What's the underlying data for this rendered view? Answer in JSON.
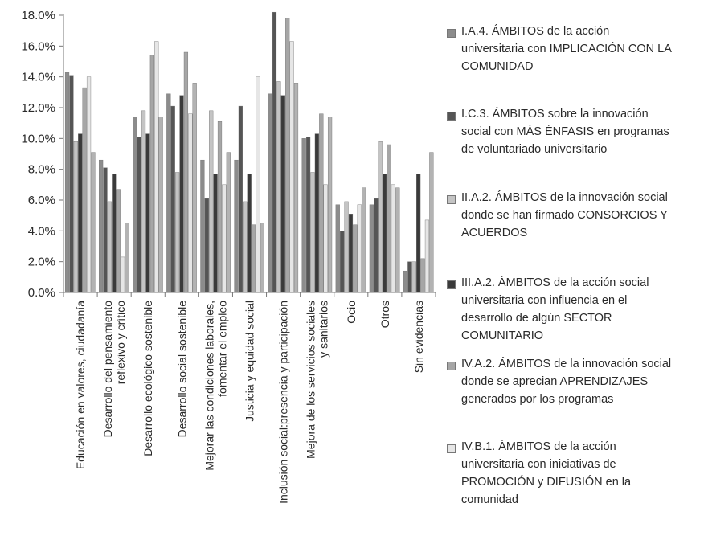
{
  "chart_data": {
    "type": "bar",
    "categories": [
      "Educación en valores, ciudadanía",
      "Desarrollo del pensamiento reflexivo y crítico",
      "Desarrollo ecológico sostenible",
      "Desarrollo social sostenible",
      "Mejorar las condiciones laborales, fomentar el empleo",
      "Justicia y equidad social",
      "Inclusión social:presencia y participación",
      "Mejora de los servicios sociales y sanitarios",
      "Ocio",
      "Otros",
      "Sin evidencias"
    ],
    "category_lines": [
      [
        "Educación en valores, ciudadanía"
      ],
      [
        "Desarrollo del pensamiento",
        "reflexivo y crítico"
      ],
      [
        "Desarrollo ecológico sostenible"
      ],
      [
        "Desarrollo social sostenible"
      ],
      [
        "Mejorar las condiciones laborales,",
        "fomentar el empleo"
      ],
      [
        "Justicia y equidad social"
      ],
      [
        "Inclusión social:presencia y participación"
      ],
      [
        "Mejora de los servicios sociales",
        "y sanitarios"
      ],
      [
        "Ocio"
      ],
      [
        "Otros"
      ],
      [
        "Sin evidencias"
      ]
    ],
    "series": [
      {
        "name": "I.A.4. ÁMBITOS de la acción universitaria con IMPLICACIÓN CON LA COMUNIDAD",
        "values": [
          14.3,
          8.6,
          11.4,
          12.9,
          8.6,
          8.6,
          12.9,
          10.0,
          5.7,
          5.7,
          1.4
        ],
        "color": "#8c8c8c"
      },
      {
        "name": "I.C.3. ÁMBITOS sobre la innovación social con MÁS ÉNFASIS en programas de voluntariado universitario",
        "values": [
          14.1,
          8.1,
          10.1,
          12.1,
          6.1,
          12.1,
          18.2,
          10.1,
          4.0,
          6.1,
          2.0
        ],
        "color": "#555555"
      },
      {
        "name": "II.A.2. ÁMBITOS de la innovación social donde se han firmado CONSORCIOS Y ACUERDOS",
        "values": [
          9.8,
          5.9,
          11.8,
          7.8,
          11.8,
          5.9,
          13.7,
          7.8,
          5.9,
          9.8,
          2.0
        ],
        "color": "#c4c4c4"
      },
      {
        "name": "III.A.2. ÁMBITOS de la acción social universitaria con influencia en el desarrollo de algún SECTOR COMUNITARIO",
        "values": [
          10.3,
          7.7,
          10.3,
          12.8,
          7.7,
          7.7,
          12.8,
          10.3,
          5.1,
          7.7,
          7.7
        ],
        "color": "#3a3a3a"
      },
      {
        "name": "IV.A.2. ÁMBITOS de la innovación social donde se aprecian APRENDIZAJES generados por los programas",
        "values": [
          13.3,
          6.7,
          15.4,
          15.6,
          11.1,
          4.4,
          17.8,
          11.6,
          4.4,
          9.6,
          2.2
        ],
        "color": "#a6a6a6"
      },
      {
        "name": "IV.B.1. ÁMBITOS de la acción universitaria con iniciativas de PROMOCIÓN y DIFUSIÓN en la comunidad",
        "values": [
          14.0,
          2.3,
          16.3,
          11.6,
          7.0,
          14.0,
          16.3,
          7.0,
          5.7,
          7.0,
          4.7
        ],
        "color": "#e6e6e6"
      },
      {
        "name": "",
        "values": [
          9.1,
          4.5,
          11.4,
          13.6,
          9.1,
          4.5,
          13.6,
          11.4,
          6.8,
          6.8,
          9.1
        ],
        "color": "#b3b3b3"
      }
    ],
    "ylim": [
      0,
      18
    ],
    "ytick_labels": [
      "0.0%",
      "2.0%",
      "4.0%",
      "6.0%",
      "8.0%",
      "10.0%",
      "12.0%",
      "14.0%",
      "16.0%",
      "18.0%"
    ],
    "legend_position": "right",
    "grid": false
  },
  "legend": {
    "items": [
      {
        "lines": [
          "I.A.4. ÁMBITOS de la acción",
          "universitaria con IMPLICACIÓN CON LA",
          "COMUNIDAD"
        ],
        "color": "#8c8c8c"
      },
      {
        "lines": [
          "I.C.3. ÁMBITOS sobre la innovación",
          "social con MÁS ÉNFASIS en programas",
          "de voluntariado universitario"
        ],
        "color": "#555555"
      },
      {
        "lines": [
          "II.A.2. ÁMBITOS de la innovación social",
          "donde se han firmado CONSORCIOS Y",
          "ACUERDOS"
        ],
        "color": "#c4c4c4"
      },
      {
        "lines": [
          "III.A.2. ÁMBITOS de la acción social",
          "universitaria con influencia en el",
          "desarrollo de algún SECTOR",
          "COMUNITARIO"
        ],
        "color": "#3a3a3a"
      },
      {
        "lines": [
          "IV.A.2. ÁMBITOS de la innovación social",
          "donde se aprecian APRENDIZAJES",
          "generados por los programas"
        ],
        "color": "#a6a6a6"
      },
      {
        "lines": [
          "IV.B.1. ÁMBITOS de la acción",
          "universitaria con iniciativas de",
          "PROMOCIÓN y DIFUSIÓN en la",
          "comunidad"
        ],
        "color": "#e6e6e6"
      }
    ]
  }
}
